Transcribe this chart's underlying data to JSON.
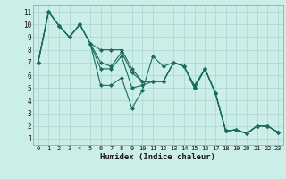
{
  "title": "",
  "xlabel": "Humidex (Indice chaleur)",
  "background_color": "#cceee8",
  "grid_color": "#aad4ce",
  "line_color": "#1a6b60",
  "xlim": [
    -0.5,
    23.5
  ],
  "ylim": [
    0.5,
    11.5
  ],
  "xticks": [
    0,
    1,
    2,
    3,
    4,
    5,
    6,
    7,
    8,
    9,
    10,
    11,
    12,
    13,
    14,
    15,
    16,
    17,
    18,
    19,
    20,
    21,
    22,
    23
  ],
  "yticks": [
    1,
    2,
    3,
    4,
    5,
    6,
    7,
    8,
    9,
    10,
    11
  ],
  "s1": [
    7,
    11,
    9.9,
    9.0,
    10.0,
    8.5,
    7.0,
    6.7,
    7.8,
    6.2,
    5.5,
    5.5,
    5.5,
    7.0,
    6.7,
    5.0,
    6.5,
    4.6,
    1.6,
    1.7,
    1.4,
    2.0,
    2.0,
    1.5
  ],
  "s2": [
    7,
    11,
    9.9,
    9.0,
    10.0,
    8.5,
    8.0,
    8.0,
    8.0,
    6.5,
    5.5,
    5.5,
    5.5,
    7.0,
    6.7,
    5.0,
    6.5,
    4.6,
    1.6,
    1.7,
    1.4,
    2.0,
    2.0,
    1.5
  ],
  "s3": [
    7,
    11,
    9.9,
    9.0,
    10.0,
    8.5,
    5.2,
    5.2,
    5.8,
    3.4,
    4.8,
    7.5,
    6.7,
    7.0,
    6.7,
    5.2,
    6.5,
    4.6,
    1.6,
    1.7,
    1.4,
    2.0,
    2.0,
    1.5
  ],
  "s4": [
    7,
    11,
    9.9,
    9.0,
    10.0,
    8.5,
    6.5,
    6.5,
    7.5,
    5.0,
    5.2,
    5.5,
    5.5,
    7.0,
    6.7,
    5.0,
    6.5,
    4.6,
    1.6,
    1.7,
    1.4,
    2.0,
    2.0,
    1.5
  ]
}
